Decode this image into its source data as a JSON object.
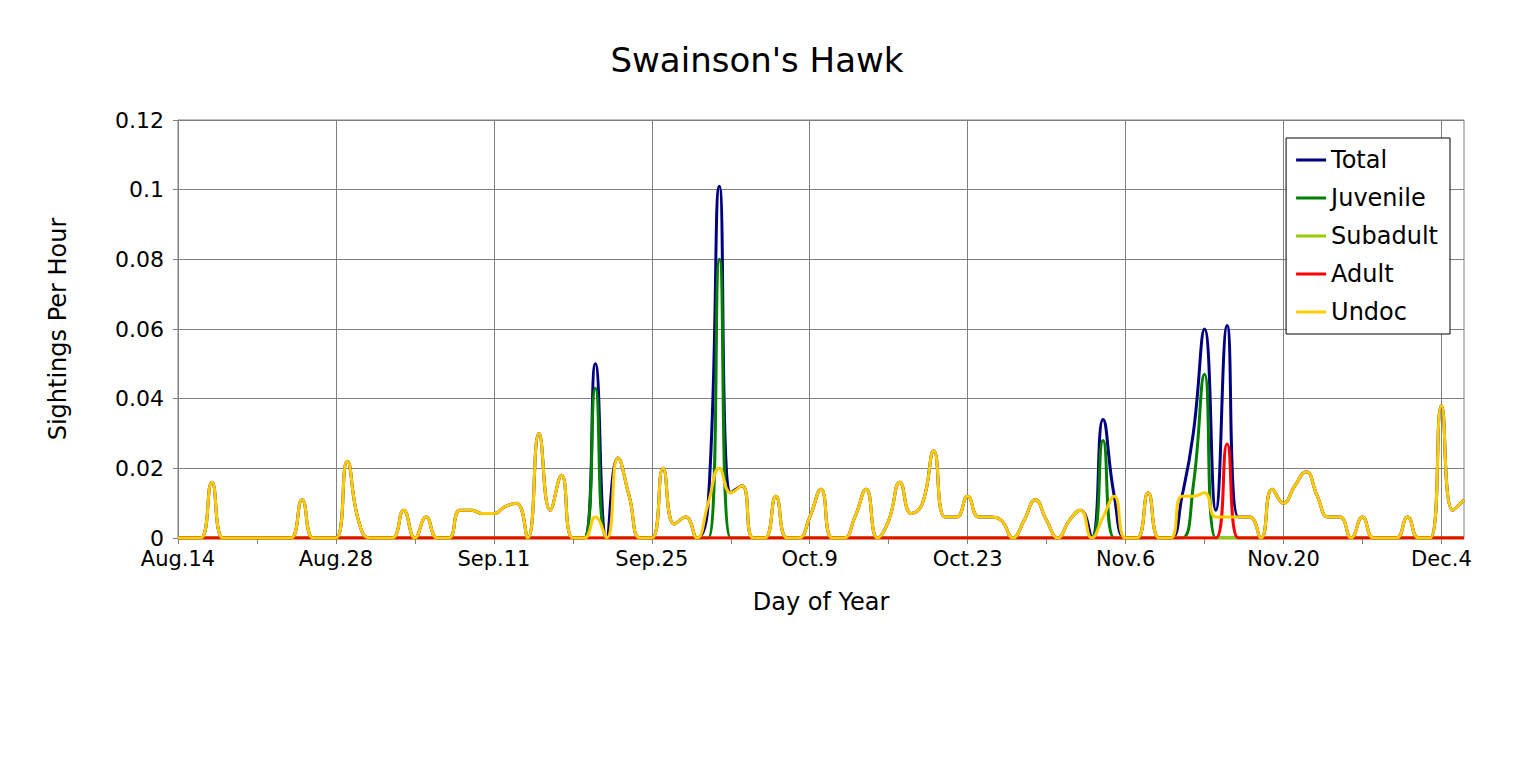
{
  "chart_data": {
    "type": "line",
    "title": "Swainson's Hawk",
    "x_label": "Day of Year",
    "y_label": "Sightings Per Hour",
    "categories": [
      "Aug.14",
      null,
      null,
      null,
      null,
      null,
      null,
      null,
      null,
      null,
      null,
      null,
      null,
      null,
      "Aug.28",
      null,
      null,
      null,
      null,
      null,
      null,
      null,
      null,
      null,
      null,
      null,
      null,
      null,
      "Sep.11",
      null,
      null,
      null,
      null,
      null,
      null,
      null,
      null,
      null,
      null,
      null,
      null,
      null,
      "Sep.25",
      null,
      null,
      null,
      null,
      null,
      null,
      null,
      null,
      null,
      null,
      null,
      null,
      null,
      "Oct.9",
      null,
      null,
      null,
      null,
      null,
      null,
      null,
      null,
      null,
      null,
      null,
      null,
      null,
      "Oct.23",
      null,
      null,
      null,
      null,
      null,
      null,
      null,
      null,
      null,
      null,
      null,
      null,
      null,
      "Nov.6",
      null,
      null,
      null,
      null,
      null,
      null,
      null,
      null,
      null,
      null,
      null,
      null,
      null,
      "Nov.20",
      null,
      null,
      null,
      null,
      null,
      null,
      null,
      null,
      null,
      null,
      null,
      null,
      null,
      "Dec.4",
      null,
      null
    ],
    "series": [
      {
        "name": "Total",
        "color": "#000080",
        "values": [
          0,
          0,
          0,
          0.016,
          0,
          0,
          0,
          0,
          0,
          0,
          0,
          0.011,
          0,
          0,
          0,
          0.022,
          0.005,
          0,
          0,
          0,
          0.008,
          0,
          0.006,
          0,
          0,
          0.008,
          0.008,
          0.007,
          0.007,
          0.009,
          0.01,
          0,
          0.03,
          0.008,
          0.018,
          0,
          0,
          0.05,
          0,
          0.023,
          0.012,
          0,
          0,
          0.02,
          0.004,
          0.006,
          0,
          0.01,
          0.101,
          0.013,
          0.015,
          0,
          0,
          0.012,
          0,
          0,
          0.006,
          0.014,
          0,
          0,
          0.006,
          0.014,
          0,
          0.005,
          0.016,
          0.007,
          0.01,
          0.025,
          0.006,
          0.006,
          0.012,
          0.006,
          0.006,
          0.005,
          0,
          0.005,
          0.011,
          0.005,
          0,
          0.005,
          0.008,
          0,
          0.034,
          0.012,
          0,
          0,
          0.013,
          0,
          0,
          0.012,
          0.03,
          0.06,
          0.008,
          0.061,
          0.006,
          0.006,
          0,
          0.014,
          0.01,
          0.015,
          0.019,
          0.012,
          0.006,
          0.006,
          0,
          0.006,
          0,
          0,
          0,
          0.006,
          0,
          0,
          0.038,
          0.008,
          0.011
        ]
      },
      {
        "name": "Juvenile",
        "color": "#008000",
        "values": [
          0,
          0,
          0,
          0,
          0,
          0,
          0,
          0,
          0,
          0,
          0,
          0,
          0,
          0,
          0,
          0,
          0,
          0,
          0,
          0,
          0,
          0,
          0,
          0,
          0,
          0,
          0,
          0,
          0,
          0,
          0,
          0,
          0,
          0,
          0,
          0,
          0,
          0.043,
          0,
          0,
          0,
          0,
          0,
          0,
          0,
          0,
          0,
          0,
          0.08,
          0,
          0,
          0,
          0,
          0,
          0,
          0,
          0,
          0,
          0,
          0,
          0,
          0,
          0,
          0,
          0,
          0,
          0,
          0,
          0,
          0,
          0,
          0,
          0,
          0,
          0,
          0,
          0,
          0,
          0,
          0,
          0,
          0,
          0.028,
          0,
          0,
          0,
          0,
          0,
          0,
          0,
          0.015,
          0.047,
          0,
          0,
          0,
          0,
          0,
          0,
          0,
          0,
          0,
          0,
          0,
          0,
          0,
          0,
          0,
          0,
          0,
          0,
          0,
          0,
          0,
          0,
          0
        ]
      },
      {
        "name": "Subadult",
        "color": "#99cc00",
        "values": [
          0,
          0,
          0,
          0,
          0,
          0,
          0,
          0,
          0,
          0,
          0,
          0,
          0,
          0,
          0,
          0,
          0,
          0,
          0,
          0,
          0,
          0,
          0,
          0,
          0,
          0,
          0,
          0,
          0,
          0,
          0,
          0,
          0,
          0,
          0,
          0,
          0,
          0,
          0,
          0,
          0,
          0,
          0,
          0,
          0,
          0,
          0,
          0,
          0,
          0,
          0,
          0,
          0,
          0,
          0,
          0,
          0,
          0,
          0,
          0,
          0,
          0,
          0,
          0,
          0,
          0,
          0,
          0,
          0,
          0,
          0,
          0,
          0,
          0,
          0,
          0,
          0,
          0,
          0,
          0,
          0,
          0,
          0,
          0,
          0,
          0,
          0,
          0,
          0,
          0,
          0,
          0,
          0,
          0,
          0,
          0,
          0,
          0,
          0,
          0,
          0,
          0,
          0,
          0,
          0,
          0,
          0,
          0,
          0,
          0,
          0,
          0,
          0,
          0,
          0
        ]
      },
      {
        "name": "Adult",
        "color": "#ff0000",
        "values": [
          0,
          0,
          0,
          0,
          0,
          0,
          0,
          0,
          0,
          0,
          0,
          0,
          0,
          0,
          0,
          0,
          0,
          0,
          0,
          0,
          0,
          0,
          0,
          0,
          0,
          0,
          0,
          0,
          0,
          0,
          0,
          0,
          0,
          0,
          0,
          0,
          0,
          0,
          0,
          0,
          0,
          0,
          0,
          0,
          0,
          0,
          0,
          0,
          0,
          0,
          0,
          0,
          0,
          0,
          0,
          0,
          0,
          0,
          0,
          0,
          0,
          0,
          0,
          0,
          0,
          0,
          0,
          0,
          0,
          0,
          0,
          0,
          0,
          0,
          0,
          0,
          0,
          0,
          0,
          0,
          0,
          0,
          0,
          0,
          0,
          0,
          0,
          0,
          0,
          0,
          0,
          0,
          0,
          0.027,
          0,
          0,
          0,
          0,
          0,
          0,
          0,
          0,
          0,
          0,
          0,
          0,
          0,
          0,
          0,
          0,
          0,
          0,
          0,
          0,
          0
        ]
      },
      {
        "name": "Undoc",
        "color": "#ffcc00",
        "values": [
          0,
          0,
          0,
          0.016,
          0,
          0,
          0,
          0,
          0,
          0,
          0,
          0.011,
          0,
          0,
          0,
          0.022,
          0.005,
          0,
          0,
          0,
          0.008,
          0,
          0.006,
          0,
          0,
          0.008,
          0.008,
          0.007,
          0.007,
          0.009,
          0.01,
          0,
          0.03,
          0.008,
          0.018,
          0,
          0,
          0.006,
          0,
          0.023,
          0.012,
          0,
          0,
          0.02,
          0.004,
          0.006,
          0,
          0.01,
          0.02,
          0.013,
          0.015,
          0,
          0,
          0.012,
          0,
          0,
          0.006,
          0.014,
          0,
          0,
          0.006,
          0.014,
          0,
          0.005,
          0.016,
          0.007,
          0.01,
          0.025,
          0.006,
          0.006,
          0.012,
          0.006,
          0.006,
          0.005,
          0,
          0.005,
          0.011,
          0.005,
          0,
          0.005,
          0.008,
          0,
          0.006,
          0.012,
          0,
          0,
          0.013,
          0,
          0,
          0.012,
          0.012,
          0.013,
          0.006,
          0.006,
          0.006,
          0.006,
          0,
          0.014,
          0.01,
          0.015,
          0.019,
          0.012,
          0.006,
          0.006,
          0,
          0.006,
          0,
          0,
          0,
          0.006,
          0,
          0,
          0.038,
          0.008,
          0.011
        ]
      }
    ],
    "ylim": [
      0,
      0.12
    ],
    "yticks": [
      0,
      0.02,
      0.04,
      0.06,
      0.08,
      0.1,
      0.12
    ],
    "grid": true,
    "legend": "upper right",
    "marker": "none"
  }
}
